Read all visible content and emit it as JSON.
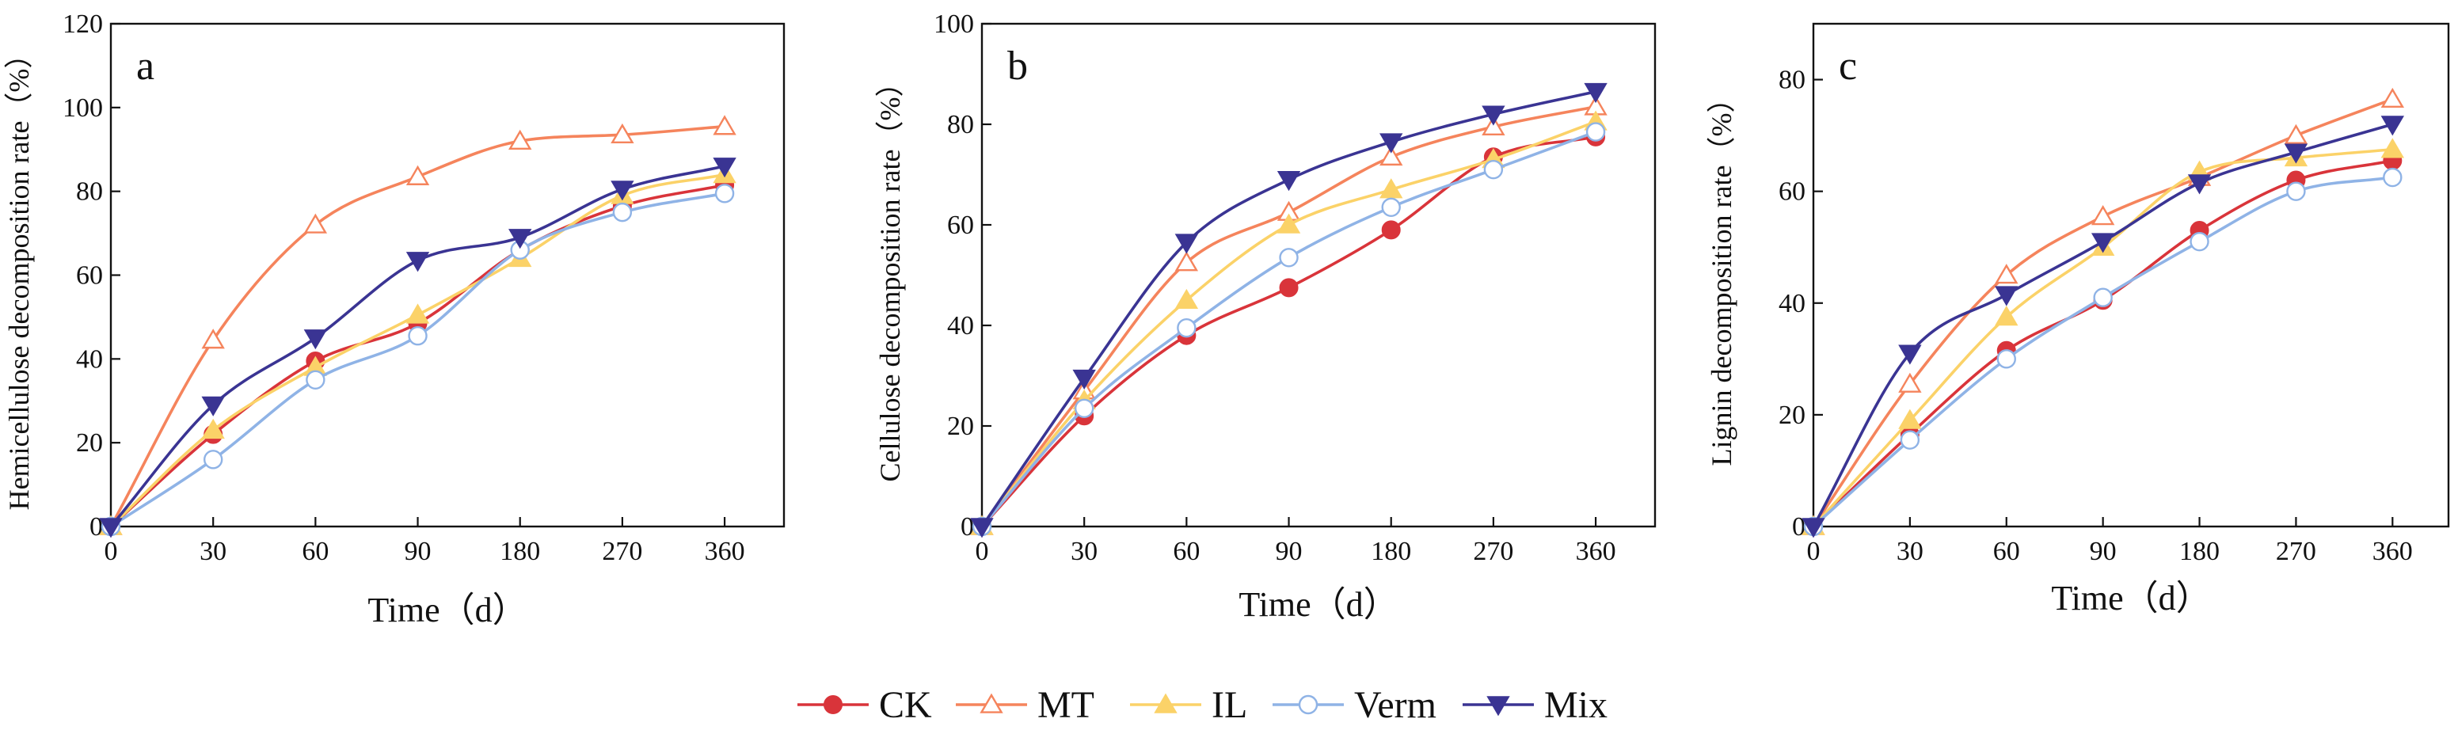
{
  "series_styles": [
    {
      "name": "CK",
      "color": "#d9343a",
      "marker": "circle-filled"
    },
    {
      "name": "MT",
      "color": "#f5845c",
      "marker": "triangle-up-open"
    },
    {
      "name": "IL",
      "color": "#fbd268",
      "marker": "triangle-up-filled"
    },
    {
      "name": "Verm",
      "color": "#8fb3e6",
      "marker": "circle-open"
    },
    {
      "name": "Mix",
      "color": "#3a3493",
      "marker": "triangle-down-filled"
    }
  ],
  "legend": {
    "labels": [
      "CK",
      "MT",
      "IL",
      "Verm",
      "Mix"
    ],
    "placement": "bottom-center"
  },
  "chart_data": [
    {
      "panel": "a",
      "type": "line",
      "xlabel": "Time（d）",
      "ylabel": "Hemicellulose decomposition rate（%）",
      "categories": [
        "0",
        "30",
        "60",
        "90",
        "180",
        "270",
        "360"
      ],
      "ylim": [
        0,
        120
      ],
      "yticks": [
        0,
        20,
        40,
        60,
        80,
        100,
        120
      ],
      "series": [
        {
          "name": "CK",
          "values": [
            0,
            22,
            39.5,
            48.5,
            66,
            76.5,
            81.5
          ]
        },
        {
          "name": "MT",
          "values": [
            0,
            44.5,
            72,
            83.5,
            92,
            93.5,
            95.5
          ]
        },
        {
          "name": "IL",
          "values": [
            0,
            23,
            38,
            50.5,
            64,
            79,
            84
          ]
        },
        {
          "name": "Verm",
          "values": [
            0,
            16,
            35,
            45.5,
            66,
            75,
            79.5
          ]
        },
        {
          "name": "Mix",
          "values": [
            0,
            29,
            45,
            63.5,
            69,
            80.5,
            86
          ]
        }
      ],
      "grid": false
    },
    {
      "panel": "b",
      "type": "line",
      "xlabel": "Time（d）",
      "ylabel": "Cellulose decomposition rate（%）",
      "categories": [
        "0",
        "30",
        "60",
        "90",
        "180",
        "270",
        "360"
      ],
      "ylim": [
        0,
        100
      ],
      "yticks": [
        0,
        20,
        40,
        60,
        80,
        100
      ],
      "series": [
        {
          "name": "CK",
          "values": [
            0,
            22,
            38,
            47.5,
            59,
            73.5,
            77.5
          ]
        },
        {
          "name": "MT",
          "values": [
            0,
            27,
            52.5,
            62.5,
            73.5,
            79.5,
            83.5
          ]
        },
        {
          "name": "IL",
          "values": [
            0,
            25,
            45,
            60,
            67,
            73,
            80.5
          ]
        },
        {
          "name": "Verm",
          "values": [
            0,
            23.5,
            39.5,
            53.5,
            63.5,
            71,
            78.5
          ]
        },
        {
          "name": "Mix",
          "values": [
            0,
            29.5,
            56.5,
            69,
            76.5,
            82,
            86.5
          ]
        }
      ],
      "grid": false
    },
    {
      "panel": "c",
      "type": "line",
      "xlabel": "Time（d）",
      "ylabel": "Lignin decomposition rate（%）",
      "categories": [
        "0",
        "30",
        "60",
        "90",
        "180",
        "270",
        "360"
      ],
      "ylim": [
        0,
        90
      ],
      "yticks": [
        0,
        20,
        40,
        60,
        80
      ],
      "series": [
        {
          "name": "CK",
          "values": [
            0,
            16.5,
            31.5,
            40.5,
            53,
            62,
            65.5
          ]
        },
        {
          "name": "MT",
          "values": [
            0,
            25.5,
            45,
            55.5,
            62.5,
            70,
            76.5
          ]
        },
        {
          "name": "IL",
          "values": [
            0,
            19,
            37.5,
            50,
            63.5,
            66,
            67.5
          ]
        },
        {
          "name": "Verm",
          "values": [
            0,
            15.5,
            30,
            41,
            51,
            60,
            62.5
          ]
        },
        {
          "name": "Mix",
          "values": [
            0,
            31,
            41.5,
            51,
            61.5,
            67,
            72
          ]
        }
      ],
      "grid": false
    }
  ]
}
